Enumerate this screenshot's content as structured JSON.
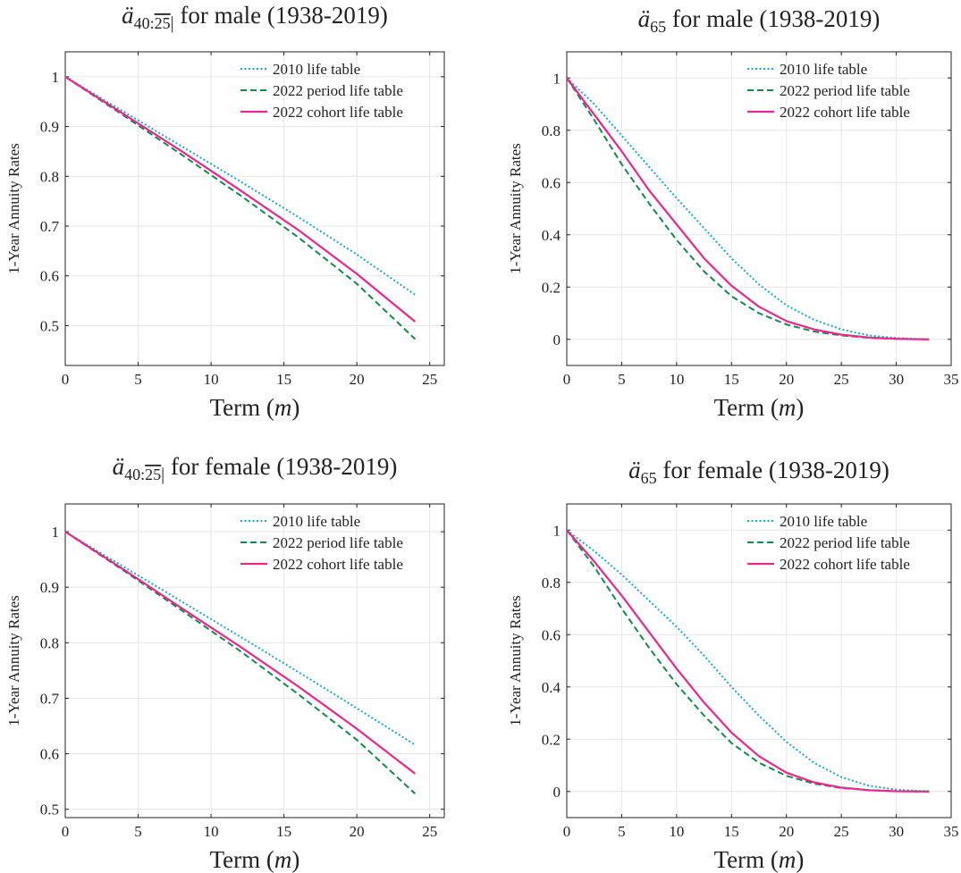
{
  "colors": {
    "table_2010": "#18a6da",
    "period_2022": "#118a4e",
    "cohort_2022": "#e8288a"
  },
  "chart_data": [
    {
      "type": "line",
      "title_main": "ä",
      "title_sub": "40:",
      "title_term": "25",
      "title_rest": " for male (1938-2019)",
      "xlabel": "Term",
      "xlabel_var": "m",
      "ylabel": "1-Year Annuity Rates",
      "xlim": [
        0,
        26
      ],
      "ylim": [
        0.42,
        1.05
      ],
      "xticks": [
        0,
        5,
        10,
        15,
        20,
        25
      ],
      "yticks": [
        0.5,
        0.6,
        0.7,
        0.8,
        0.9,
        1
      ],
      "ytick_labels": [
        "0.5",
        "0.6",
        "0.7",
        "0.8",
        "0.9",
        "1"
      ],
      "grid": true,
      "legend": "top-right",
      "series": [
        {
          "name": "2010 life table",
          "style": "dotted",
          "color_key": "table_2010",
          "x": [
            0,
            4,
            8,
            12,
            16,
            20,
            24
          ],
          "y": [
            1,
            0.93,
            0.86,
            0.79,
            0.718,
            0.643,
            0.562
          ]
        },
        {
          "name": "2022 period life table",
          "style": "dashed",
          "color_key": "period_2022",
          "x": [
            0,
            4,
            8,
            12,
            16,
            20,
            24
          ],
          "y": [
            1,
            0.922,
            0.843,
            0.762,
            0.677,
            0.584,
            0.473
          ]
        },
        {
          "name": "2022 cohort life table",
          "style": "solid",
          "color_key": "cohort_2022",
          "x": [
            0,
            4,
            8,
            12,
            16,
            20,
            24
          ],
          "y": [
            1,
            0.925,
            0.85,
            0.772,
            0.692,
            0.604,
            0.508
          ]
        }
      ]
    },
    {
      "type": "line",
      "title_main": "ä",
      "title_sub": "65",
      "title_term": "",
      "title_rest": " for male (1938-2019)",
      "xlabel": "Term",
      "xlabel_var": "m",
      "ylabel": "1-Year Annuity Rates",
      "xlim": [
        0,
        35
      ],
      "ylim": [
        -0.1,
        1.1
      ],
      "xticks": [
        0,
        5,
        10,
        15,
        20,
        25,
        30,
        35
      ],
      "yticks": [
        0,
        0.2,
        0.4,
        0.6,
        0.8,
        1
      ],
      "ytick_labels": [
        "0",
        "0.2",
        "0.4",
        "0.6",
        "0.8",
        "1"
      ],
      "grid": true,
      "legend": "top-right",
      "series": [
        {
          "name": "2010 life table",
          "style": "dotted",
          "color_key": "table_2010",
          "x": [
            0,
            2.5,
            5,
            7.5,
            10,
            12.5,
            15,
            17.5,
            20,
            22.5,
            25,
            27.5,
            30,
            33
          ],
          "y": [
            1,
            0.9,
            0.78,
            0.66,
            0.54,
            0.425,
            0.31,
            0.21,
            0.13,
            0.075,
            0.038,
            0.015,
            0.005,
            0
          ]
        },
        {
          "name": "2022 period life table",
          "style": "dashed",
          "color_key": "period_2022",
          "x": [
            0,
            2.5,
            5,
            7.5,
            10,
            12.5,
            15,
            17.5,
            20,
            22.5,
            25,
            27.5,
            30,
            33
          ],
          "y": [
            1,
            0.84,
            0.67,
            0.52,
            0.38,
            0.26,
            0.165,
            0.1,
            0.057,
            0.03,
            0.015,
            0.006,
            0.002,
            0
          ]
        },
        {
          "name": "2022 cohort life table",
          "style": "solid",
          "color_key": "cohort_2022",
          "x": [
            0,
            2.5,
            5,
            7.5,
            10,
            12.5,
            15,
            17.5,
            20,
            22.5,
            25,
            27.5,
            30,
            33
          ],
          "y": [
            1,
            0.86,
            0.72,
            0.57,
            0.44,
            0.31,
            0.205,
            0.125,
            0.07,
            0.038,
            0.018,
            0.007,
            0.002,
            0
          ]
        }
      ]
    },
    {
      "type": "line",
      "title_main": "ä",
      "title_sub": "40:",
      "title_term": "25",
      "title_rest": " for female (1938-2019)",
      "xlabel": "Term",
      "xlabel_var": "m",
      "ylabel": "1-Year Annuity Rates",
      "xlim": [
        0,
        26
      ],
      "ylim": [
        0.485,
        1.05
      ],
      "xticks": [
        0,
        5,
        10,
        15,
        20,
        25
      ],
      "yticks": [
        0.5,
        0.6,
        0.7,
        0.8,
        0.9,
        1
      ],
      "ytick_labels": [
        "0.5",
        "0.6",
        "0.7",
        "0.8",
        "0.9",
        "1"
      ],
      "grid": true,
      "legend": "top-right",
      "series": [
        {
          "name": "2010 life table",
          "style": "dotted",
          "color_key": "table_2010",
          "x": [
            0,
            4,
            8,
            12,
            16,
            20,
            24
          ],
          "y": [
            1,
            0.937,
            0.874,
            0.811,
            0.747,
            0.682,
            0.616
          ]
        },
        {
          "name": "2022 period life table",
          "style": "dashed",
          "color_key": "period_2022",
          "x": [
            0,
            4,
            8,
            12,
            16,
            20,
            24
          ],
          "y": [
            1,
            0.93,
            0.858,
            0.785,
            0.707,
            0.625,
            0.528
          ]
        },
        {
          "name": "2022 cohort life table",
          "style": "solid",
          "color_key": "cohort_2022",
          "x": [
            0,
            4,
            8,
            12,
            16,
            20,
            24
          ],
          "y": [
            1,
            0.932,
            0.862,
            0.793,
            0.721,
            0.645,
            0.564
          ]
        }
      ]
    },
    {
      "type": "line",
      "title_main": "ä",
      "title_sub": "65",
      "title_term": "",
      "title_rest": " for female (1938-2019)",
      "xlabel": "Term",
      "xlabel_var": "m",
      "ylabel": "1-Year Annuity Rates",
      "xlim": [
        0,
        35
      ],
      "ylim": [
        -0.1,
        1.1
      ],
      "xticks": [
        0,
        5,
        10,
        15,
        20,
        25,
        30,
        35
      ],
      "yticks": [
        0,
        0.2,
        0.4,
        0.6,
        0.8,
        1
      ],
      "ytick_labels": [
        "0",
        "0.2",
        "0.4",
        "0.6",
        "0.8",
        "1"
      ],
      "grid": true,
      "legend": "top-right",
      "series": [
        {
          "name": "2010 life table",
          "style": "dotted",
          "color_key": "table_2010",
          "x": [
            0,
            2.5,
            5,
            7.5,
            10,
            12.5,
            15,
            17.5,
            20,
            22.5,
            25,
            27.5,
            30,
            33
          ],
          "y": [
            1,
            0.92,
            0.83,
            0.73,
            0.63,
            0.52,
            0.4,
            0.29,
            0.19,
            0.11,
            0.055,
            0.022,
            0.007,
            0
          ]
        },
        {
          "name": "2022 period life table",
          "style": "dashed",
          "color_key": "period_2022",
          "x": [
            0,
            2.5,
            5,
            7.5,
            10,
            12.5,
            15,
            17.5,
            20,
            22.5,
            25,
            27.5,
            30,
            33
          ],
          "y": [
            1,
            0.86,
            0.7,
            0.55,
            0.41,
            0.29,
            0.185,
            0.11,
            0.06,
            0.03,
            0.013,
            0.005,
            0.001,
            0
          ]
        },
        {
          "name": "2022 cohort life table",
          "style": "solid",
          "color_key": "cohort_2022",
          "x": [
            0,
            2.5,
            5,
            7.5,
            10,
            12.5,
            15,
            17.5,
            20,
            22.5,
            25,
            27.5,
            30,
            33
          ],
          "y": [
            1,
            0.88,
            0.75,
            0.61,
            0.47,
            0.34,
            0.225,
            0.135,
            0.072,
            0.035,
            0.015,
            0.005,
            0.001,
            0
          ]
        }
      ]
    }
  ]
}
